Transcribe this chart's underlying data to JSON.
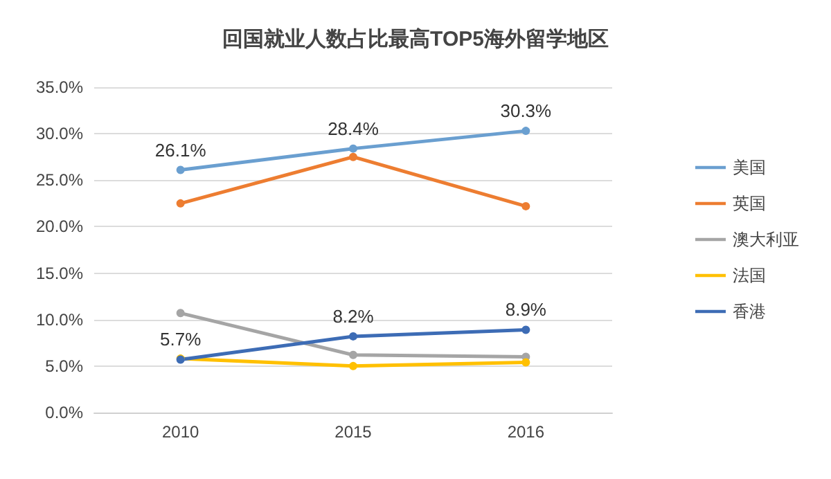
{
  "chart_data": {
    "type": "line",
    "title": "回国就业人数占比最高TOP5海外留学地区",
    "categories": [
      "2010",
      "2015",
      "2016"
    ],
    "series": [
      {
        "name": "美国",
        "color": "#6a9fd0",
        "values": [
          26.1,
          28.4,
          30.3
        ],
        "value_labels": [
          "26.1%",
          "28.4%",
          "30.3%"
        ]
      },
      {
        "name": "英国",
        "color": "#ed7d31",
        "values": [
          22.5,
          27.5,
          22.2
        ]
      },
      {
        "name": "澳大利亚",
        "color": "#a5a5a5",
        "values": [
          10.7,
          6.2,
          6.0
        ]
      },
      {
        "name": "法国",
        "color": "#ffc000",
        "values": [
          5.8,
          5.0,
          5.4
        ]
      },
      {
        "name": "香港",
        "color": "#3d6cb5",
        "values": [
          5.7,
          8.2,
          8.9
        ],
        "value_labels": [
          "5.7%",
          "8.2%",
          "8.9%"
        ]
      }
    ],
    "ylim": [
      0,
      35
    ],
    "yticks": [
      {
        "value": 0,
        "label": "0.0%"
      },
      {
        "value": 5,
        "label": "5.0%"
      },
      {
        "value": 10,
        "label": "10.0%"
      },
      {
        "value": 15,
        "label": "15.0%"
      },
      {
        "value": 20,
        "label": "20.0%"
      },
      {
        "value": 25,
        "label": "25.0%"
      },
      {
        "value": 30,
        "label": "30.0%"
      },
      {
        "value": 35,
        "label": "35.0%"
      }
    ],
    "grid": "y",
    "legend": "right",
    "marker": "circle",
    "line_style": "solid"
  }
}
